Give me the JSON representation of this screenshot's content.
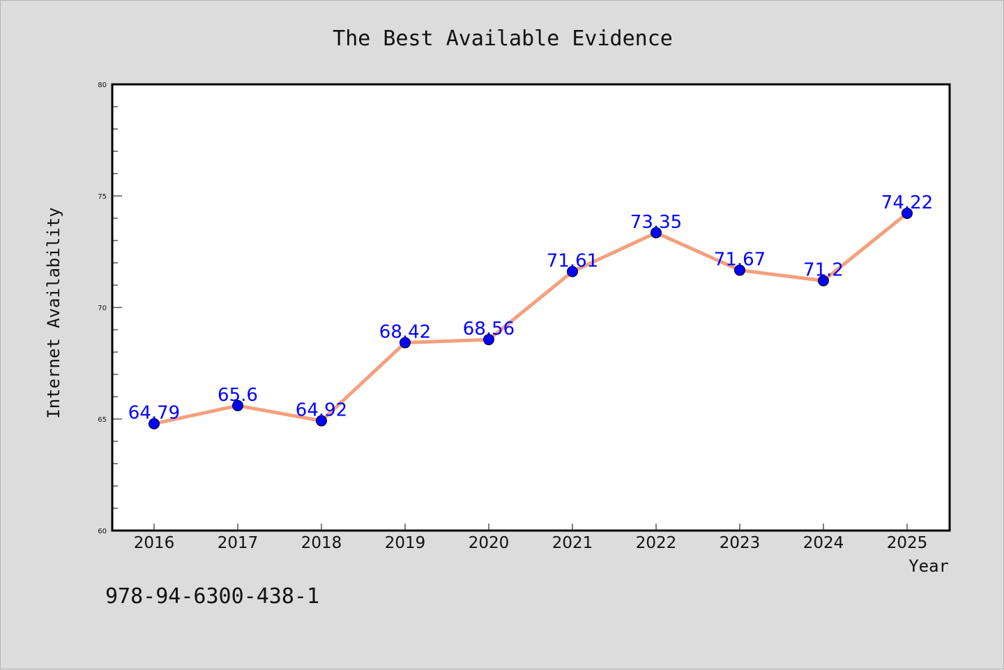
{
  "chart_data": {
    "type": "line",
    "title": "The Best Available Evidence",
    "xlabel": "Year",
    "ylabel": "Internet Availability",
    "categories": [
      "2016",
      "2017",
      "2018",
      "2019",
      "2020",
      "2021",
      "2022",
      "2023",
      "2024",
      "2025"
    ],
    "series": [
      {
        "values": [
          64.79,
          65.6,
          64.92,
          68.42,
          68.56,
          71.61,
          73.35,
          71.67,
          71.2,
          74.22
        ],
        "labels": [
          "64.79",
          "65.6",
          "64.92",
          "68.42",
          "68.56",
          "71.61",
          "73.35",
          "71.67",
          "71.2",
          "74.22"
        ],
        "line_color": "#f4a07e",
        "marker_color": "#0000ff",
        "label_color": "#0000ff"
      }
    ],
    "ylim": [
      60,
      80
    ],
    "y_ticks": [
      "60",
      "65",
      "70",
      "75",
      "80"
    ],
    "grid": false,
    "legend": "none"
  },
  "annotation": {
    "isbn": "978-94-6300-438-1"
  },
  "colors": {
    "background": "#dcdcdc",
    "plot_background": "#ffffff",
    "axis": "#000000"
  }
}
